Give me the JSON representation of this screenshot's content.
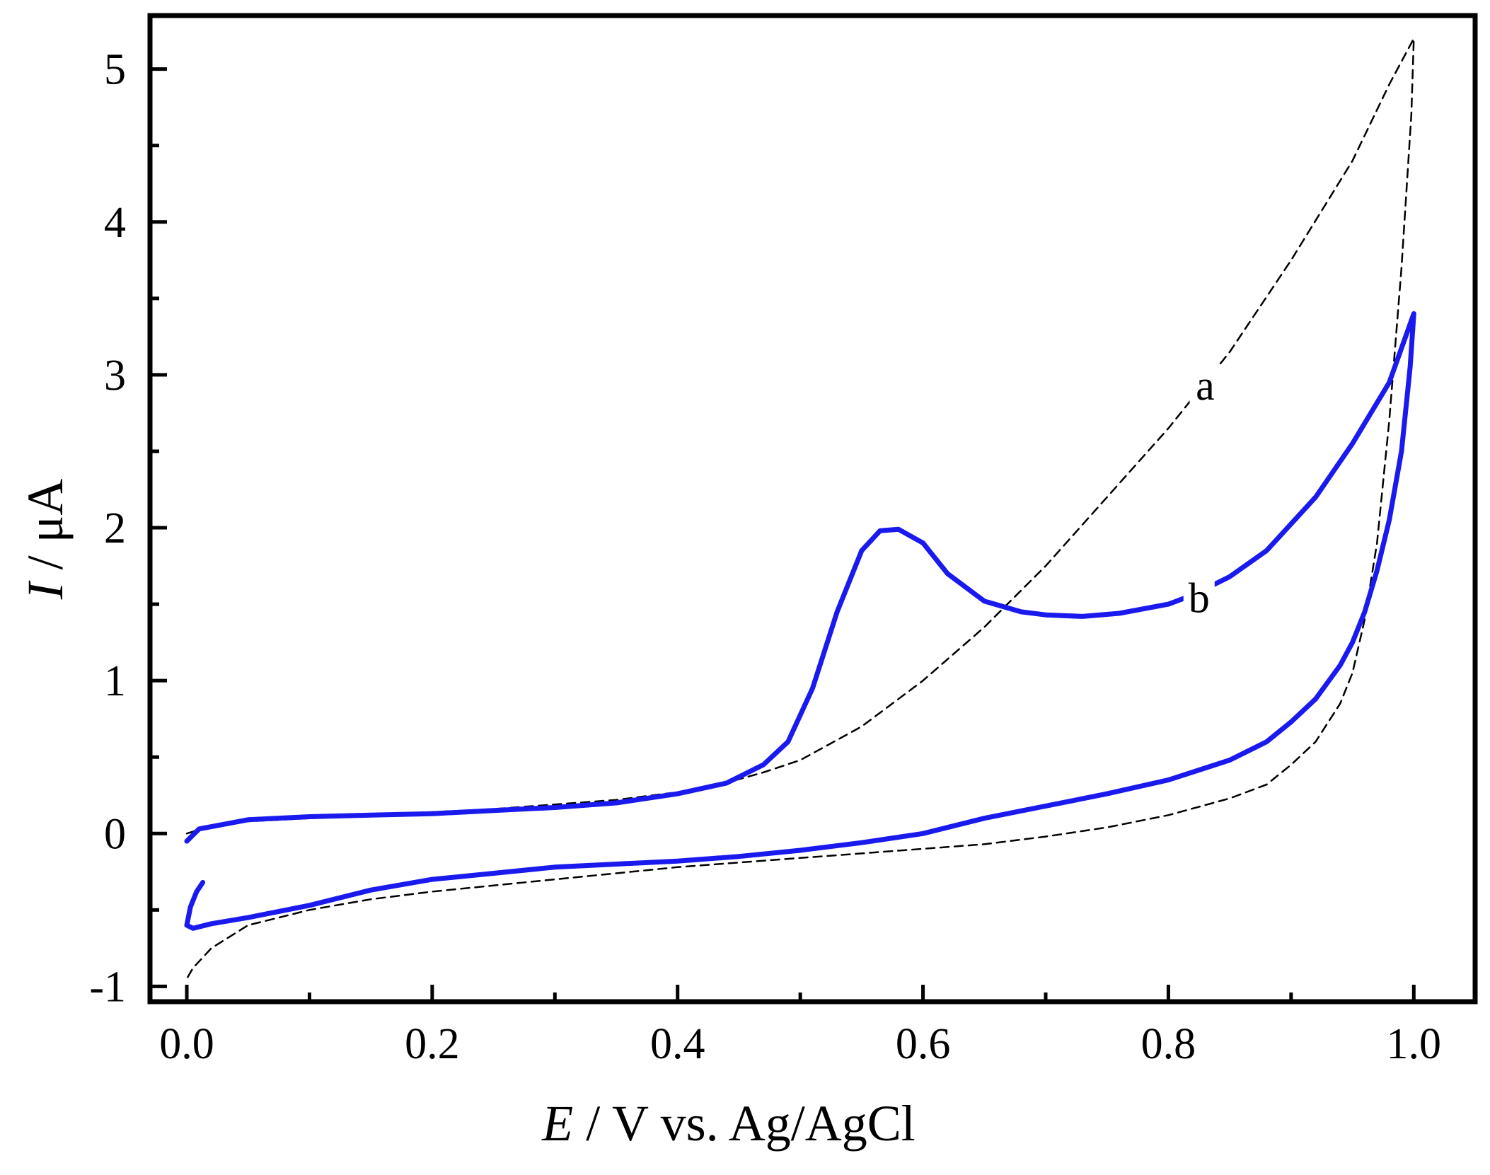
{
  "chart_data": {
    "type": "line",
    "title": "",
    "xlabel": {
      "symbol": "E",
      "rest": " / V vs. Ag/AgCl"
    },
    "ylabel": {
      "symbol": "I",
      "rest": " / μA"
    },
    "xlim": [
      -0.03,
      1.05
    ],
    "ylim": [
      -1.1,
      5.35
    ],
    "xticks": [
      0.0,
      0.2,
      0.4,
      0.6,
      0.8,
      1.0
    ],
    "xtick_labels": [
      "0.0",
      "0.2",
      "0.4",
      "0.6",
      "0.8",
      "1.0"
    ],
    "yticks": [
      -1,
      0,
      1,
      2,
      3,
      4,
      5
    ],
    "ytick_labels": [
      "-1",
      "0",
      "1",
      "2",
      "3",
      "4",
      "5"
    ],
    "grid": false,
    "series": [
      {
        "name": "a",
        "style": "dashed",
        "color": "#000000",
        "label_at": [
          0.83,
          2.92
        ],
        "x": [
          0.0,
          0.02,
          0.05,
          0.1,
          0.15,
          0.2,
          0.25,
          0.3,
          0.35,
          0.4,
          0.43,
          0.47,
          0.5,
          0.55,
          0.6,
          0.65,
          0.7,
          0.75,
          0.8,
          0.85,
          0.9,
          0.95,
          0.98,
          1.0,
          0.998,
          0.99,
          0.98,
          0.97,
          0.96,
          0.95,
          0.94,
          0.92,
          0.9,
          0.88,
          0.85,
          0.8,
          0.75,
          0.7,
          0.65,
          0.6,
          0.55,
          0.5,
          0.45,
          0.4,
          0.35,
          0.3,
          0.25,
          0.2,
          0.15,
          0.1,
          0.05,
          0.02,
          0.005,
          0.0
        ],
        "y": [
          0.0,
          0.05,
          0.08,
          0.1,
          0.12,
          0.14,
          0.16,
          0.19,
          0.22,
          0.27,
          0.31,
          0.4,
          0.48,
          0.7,
          1.0,
          1.35,
          1.75,
          2.2,
          2.65,
          3.15,
          3.75,
          4.4,
          4.9,
          5.2,
          4.7,
          3.7,
          2.7,
          1.9,
          1.4,
          1.05,
          0.85,
          0.6,
          0.45,
          0.32,
          0.23,
          0.12,
          0.04,
          -0.02,
          -0.07,
          -0.1,
          -0.13,
          -0.16,
          -0.19,
          -0.22,
          -0.26,
          -0.3,
          -0.34,
          -0.38,
          -0.43,
          -0.5,
          -0.6,
          -0.75,
          -0.88,
          -0.95
        ]
      },
      {
        "name": "b",
        "style": "solid",
        "color": "#1a1aee",
        "label_at": [
          0.825,
          1.53
        ],
        "x": [
          0.0,
          0.01,
          0.05,
          0.1,
          0.15,
          0.2,
          0.25,
          0.3,
          0.35,
          0.4,
          0.44,
          0.47,
          0.49,
          0.51,
          0.53,
          0.55,
          0.565,
          0.58,
          0.6,
          0.62,
          0.65,
          0.68,
          0.7,
          0.73,
          0.76,
          0.8,
          0.82,
          0.85,
          0.88,
          0.92,
          0.95,
          0.98,
          1.0,
          0.997,
          0.99,
          0.98,
          0.97,
          0.96,
          0.95,
          0.94,
          0.92,
          0.9,
          0.88,
          0.85,
          0.8,
          0.75,
          0.7,
          0.65,
          0.6,
          0.55,
          0.5,
          0.45,
          0.4,
          0.35,
          0.3,
          0.25,
          0.2,
          0.15,
          0.1,
          0.05,
          0.02,
          0.005,
          0.0,
          0.003,
          0.008,
          0.013
        ],
        "y": [
          -0.05,
          0.03,
          0.09,
          0.11,
          0.12,
          0.13,
          0.15,
          0.17,
          0.2,
          0.26,
          0.33,
          0.45,
          0.6,
          0.95,
          1.45,
          1.85,
          1.98,
          1.99,
          1.9,
          1.7,
          1.52,
          1.45,
          1.43,
          1.42,
          1.44,
          1.5,
          1.56,
          1.68,
          1.85,
          2.2,
          2.55,
          2.95,
          3.4,
          3.05,
          2.5,
          2.05,
          1.72,
          1.45,
          1.25,
          1.1,
          0.88,
          0.73,
          0.6,
          0.48,
          0.35,
          0.26,
          0.18,
          0.1,
          0.0,
          -0.06,
          -0.11,
          -0.15,
          -0.18,
          -0.2,
          -0.22,
          -0.26,
          -0.3,
          -0.37,
          -0.47,
          -0.55,
          -0.59,
          -0.62,
          -0.6,
          -0.48,
          -0.38,
          -0.32
        ]
      }
    ]
  }
}
